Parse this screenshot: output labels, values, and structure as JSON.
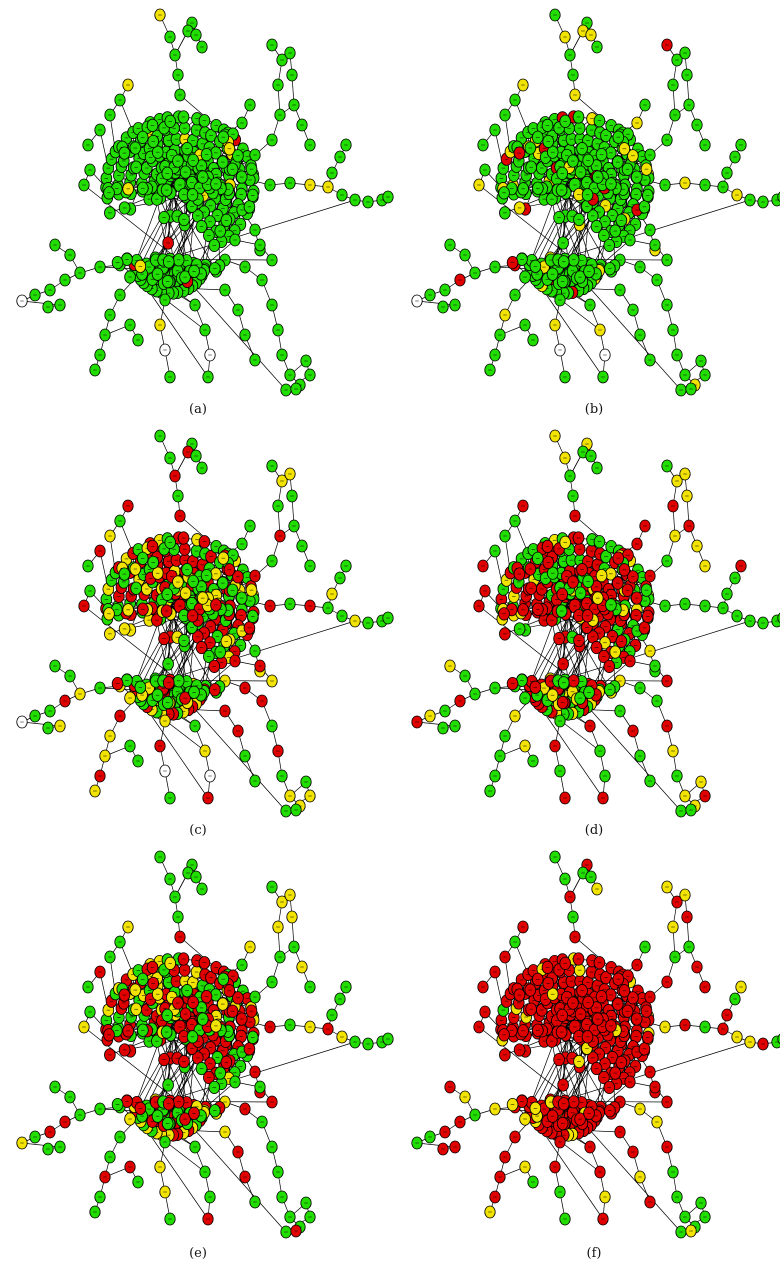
{
  "figure": {
    "colors": {
      "green": "#22dd00",
      "yellow": "#f2e300",
      "red": "#e00000",
      "uncolored": "#ffffff",
      "edge": "#000000",
      "outline": "#000000"
    },
    "panels": [
      {
        "label": "(a)",
        "seed": 11,
        "red_fraction": 0.01,
        "yellow_fraction": 0.03,
        "white_nodes": 3
      },
      {
        "label": "(b)",
        "seed": 22,
        "red_fraction": 0.03,
        "yellow_fraction": 0.1,
        "white_nodes": 3
      },
      {
        "label": "(c)",
        "seed": 33,
        "red_fraction": 0.22,
        "yellow_fraction": 0.22,
        "white_nodes": 3
      },
      {
        "label": "(d)",
        "seed": 44,
        "red_fraction": 0.35,
        "yellow_fraction": 0.15,
        "white_nodes": 0
      },
      {
        "label": "(e)",
        "seed": 55,
        "red_fraction": 0.28,
        "yellow_fraction": 0.22,
        "white_nodes": 0
      },
      {
        "label": "(f)",
        "seed": 66,
        "red_fraction": 0.6,
        "yellow_fraction": 0.18,
        "white_nodes": 0
      }
    ]
  }
}
